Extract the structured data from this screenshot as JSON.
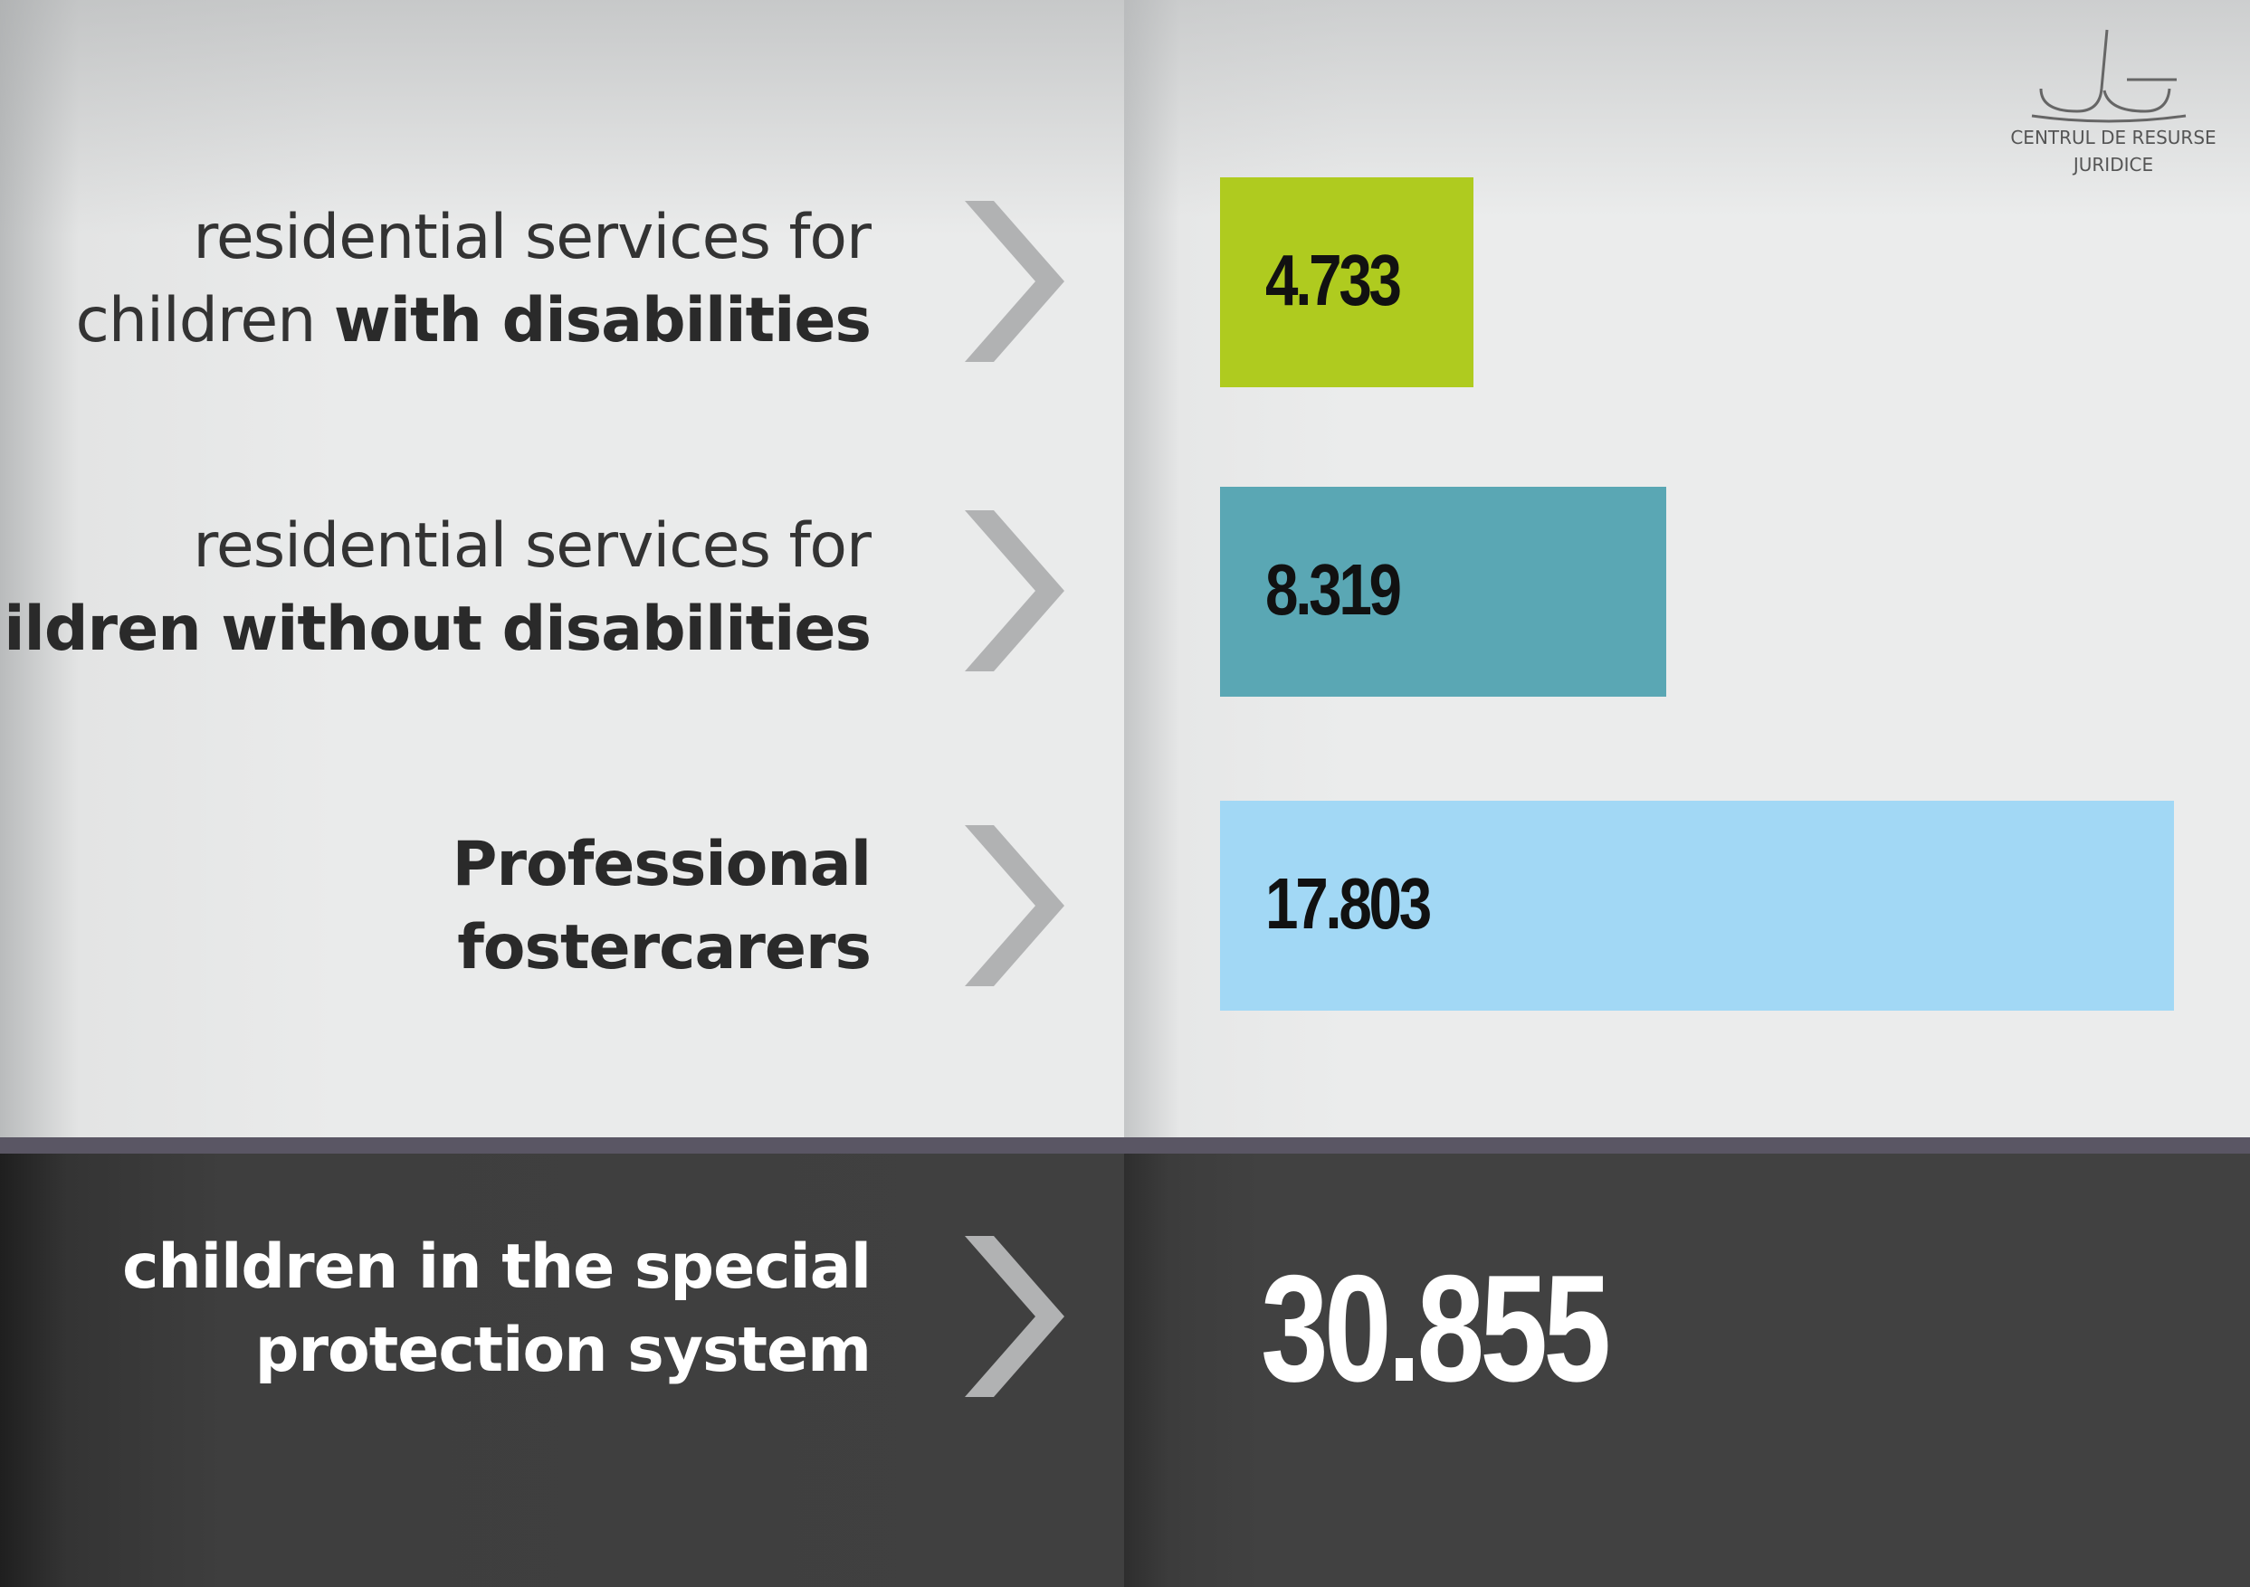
{
  "logo": {
    "line1": "CENTRUL DE RESURSE",
    "line2": "JURIDICE"
  },
  "chart_data": {
    "type": "bar",
    "orientation": "horizontal",
    "categories": [
      {
        "line1": "residential services for",
        "line2_regular": "children ",
        "line2_bold": "with disabilities"
      },
      {
        "line1": "residential services for",
        "line2_regular": "",
        "line2_bold": "children without disabilities"
      },
      {
        "line1_bold": "Professional",
        "line2_bold": "fostercarers"
      }
    ],
    "values": [
      4733,
      8319,
      17803
    ],
    "value_labels": [
      "4.733",
      "8.319",
      "17.803"
    ],
    "colors": [
      "#afcb1f",
      "#5aa7b4",
      "#a2d8f5"
    ],
    "total": {
      "line1": "children in the special",
      "line2": "protection system",
      "value": 30855,
      "value_label": "30.855"
    }
  }
}
